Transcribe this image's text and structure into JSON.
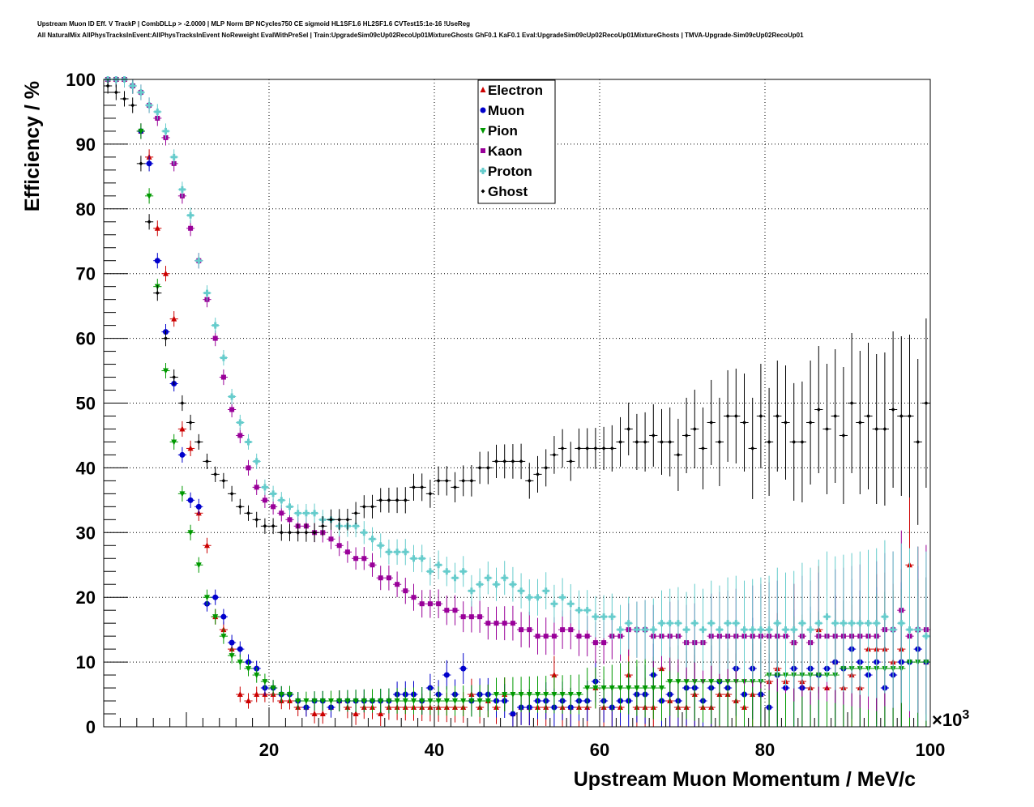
{
  "header": {
    "line1": "Upstream Muon ID Eff. V TrackP | CombDLLp > -2.0000 | MLP Norm BP NCycles750 CE sigmoid HL1SF1.6 HL2SF1.6 CVTest15:1e-16 !UseReg",
    "line2": "All NaturalMix AllPhysTracksInEvent:AllPhysTracksInEvent NoReweight EvalWithPreSel | Train:UpgradeSim09cUp02RecoUp01MixtureGhosts GhF0.1 KaF0.1 Eval:UpgradeSim09cUp02RecoUp01MixtureGhosts | TMVA-Upgrade-Sim09cUp02RecoUp01"
  },
  "chart_data": {
    "type": "scatter",
    "xlabel": "Upstream Muon Momentum / MeV/c",
    "ylabel": "Efficiency / %",
    "x_multiplier_label": "×10",
    "x_multiplier_exp": "3",
    "xlim": [
      0,
      100
    ],
    "ylim": [
      0,
      100
    ],
    "x_ticks": [
      20,
      40,
      60,
      80,
      100
    ],
    "y_ticks": [
      0,
      10,
      20,
      30,
      40,
      50,
      60,
      70,
      80,
      90,
      100
    ],
    "grid": true,
    "legend_position": "top-center",
    "x": [
      0.5,
      1.5,
      2.5,
      3.5,
      4.5,
      5.5,
      6.5,
      7.5,
      8.5,
      9.5,
      10.5,
      11.5,
      12.5,
      13.5,
      14.5,
      15.5,
      16.5,
      17.5,
      18.5,
      19.5,
      20.5,
      21.5,
      22.5,
      23.5,
      24.5,
      25.5,
      26.5,
      27.5,
      28.5,
      29.5,
      30.5,
      31.5,
      32.5,
      33.5,
      34.5,
      35.5,
      36.5,
      37.5,
      38.5,
      39.5,
      40.5,
      41.5,
      42.5,
      43.5,
      44.5,
      45.5,
      46.5,
      47.5,
      48.5,
      49.5,
      50.5,
      51.5,
      52.5,
      53.5,
      54.5,
      55.5,
      56.5,
      57.5,
      58.5,
      59.5,
      60.5,
      61.5,
      62.5,
      63.5,
      64.5,
      65.5,
      66.5,
      67.5,
      68.5,
      69.5,
      70.5,
      71.5,
      72.5,
      73.5,
      74.5,
      75.5,
      76.5,
      77.5,
      78.5,
      79.5,
      80.5,
      81.5,
      82.5,
      83.5,
      84.5,
      85.5,
      86.5,
      87.5,
      88.5,
      89.5,
      90.5,
      91.5,
      92.5,
      93.5,
      94.5,
      95.5,
      96.5,
      97.5,
      98.5,
      99.5
    ],
    "series": [
      {
        "name": "Electron",
        "color": "#cc0000",
        "marker": "triangle-up",
        "values": [
          100,
          100,
          100,
          99,
          92,
          88,
          77,
          70,
          63,
          46,
          43,
          33,
          28,
          17,
          15,
          12,
          5,
          4,
          5,
          5,
          5,
          4,
          4,
          3,
          3,
          2,
          2,
          3,
          4,
          3,
          2,
          3,
          3,
          2,
          3,
          3,
          3,
          3,
          3,
          3,
          3,
          3,
          3,
          3,
          5,
          3,
          4,
          3,
          5,
          2,
          3,
          3,
          3,
          3,
          8,
          3,
          3,
          3,
          3,
          6,
          3,
          3,
          3,
          8,
          3,
          3,
          3,
          9,
          4,
          3,
          3,
          5,
          3,
          3,
          5,
          5,
          4,
          3,
          5,
          5,
          7,
          9,
          7,
          13,
          7,
          6,
          15,
          6,
          10,
          6,
          8,
          6,
          12,
          12,
          12,
          10,
          12,
          25,
          15,
          10
        ]
      },
      {
        "name": "Muon",
        "color": "#0000cc",
        "marker": "circle",
        "values": [
          100,
          100,
          100,
          99,
          92,
          87,
          72,
          61,
          53,
          42,
          35,
          34,
          19,
          20,
          17,
          13,
          12,
          10,
          9,
          6,
          6,
          5,
          5,
          4,
          3,
          4,
          4,
          3,
          4,
          4,
          4,
          4,
          4,
          4,
          4,
          5,
          5,
          5,
          4,
          6,
          5,
          8,
          5,
          9,
          4,
          5,
          5,
          4,
          4,
          2,
          3,
          3,
          4,
          4,
          3,
          4,
          3,
          4,
          4,
          7,
          4,
          3,
          4,
          4,
          5,
          5,
          8,
          4,
          5,
          4,
          6,
          6,
          4,
          6,
          7,
          6,
          9,
          5,
          9,
          5,
          3,
          8,
          6,
          9,
          6,
          9,
          8,
          9,
          10,
          9,
          12,
          10,
          8,
          10,
          6,
          8,
          10,
          10,
          12,
          10
        ]
      },
      {
        "name": "Pion",
        "color": "#009900",
        "marker": "triangle-down",
        "values": [
          100,
          100,
          100,
          99,
          92,
          82,
          68,
          55,
          44,
          36,
          30,
          25,
          20,
          17,
          14,
          11,
          10,
          9,
          8,
          7,
          6,
          5,
          5,
          4,
          4,
          4,
          4,
          4,
          4,
          4,
          4,
          4,
          4,
          4,
          4,
          4,
          4,
          4,
          4,
          4,
          4,
          4,
          4,
          4,
          4,
          4,
          4,
          5,
          5,
          5,
          5,
          5,
          5,
          5,
          5,
          5,
          5,
          5,
          6,
          6,
          6,
          6,
          6,
          6,
          6,
          6,
          6,
          6,
          7,
          7,
          7,
          7,
          7,
          7,
          7,
          7,
          7,
          7,
          7,
          7,
          8,
          8,
          8,
          8,
          8,
          8,
          8,
          8,
          8,
          9,
          9,
          9,
          9,
          9,
          9,
          9,
          9,
          10,
          10,
          10
        ]
      },
      {
        "name": "Kaon",
        "color": "#990099",
        "marker": "square",
        "values": [
          100,
          100,
          100,
          99,
          98,
          96,
          94,
          91,
          87,
          82,
          77,
          72,
          66,
          60,
          54,
          49,
          45,
          40,
          37,
          35,
          34,
          33,
          32,
          31,
          31,
          30,
          30,
          29,
          28,
          27,
          26,
          26,
          25,
          23,
          23,
          22,
          21,
          20,
          19,
          19,
          19,
          18,
          18,
          17,
          17,
          17,
          16,
          16,
          16,
          16,
          15,
          15,
          14,
          14,
          14,
          15,
          15,
          14,
          14,
          13,
          13,
          14,
          14,
          15,
          15,
          15,
          14,
          14,
          14,
          14,
          13,
          13,
          13,
          14,
          14,
          14,
          14,
          14,
          14,
          14,
          14,
          14,
          14,
          13,
          14,
          13,
          14,
          14,
          14,
          14,
          14,
          14,
          14,
          14,
          15,
          15,
          18,
          14,
          15,
          15
        ]
      },
      {
        "name": "Proton",
        "color": "#66cccc",
        "marker": "cross",
        "values": [
          100,
          100,
          100,
          99,
          98,
          96,
          95,
          92,
          88,
          83,
          79,
          72,
          67,
          62,
          57,
          51,
          47,
          44,
          41,
          37,
          36,
          35,
          34,
          33,
          33,
          33,
          32,
          32,
          31,
          31,
          31,
          30,
          29,
          28,
          27,
          27,
          27,
          26,
          26,
          24,
          25,
          24,
          23,
          24,
          21,
          22,
          23,
          22,
          23,
          22,
          21,
          20,
          20,
          21,
          19,
          20,
          19,
          18,
          18,
          17,
          17,
          17,
          15,
          16,
          15,
          15,
          15,
          16,
          16,
          16,
          15,
          16,
          15,
          16,
          15,
          16,
          16,
          15,
          15,
          15,
          15,
          16,
          15,
          15,
          16,
          15,
          16,
          17,
          16,
          16,
          16,
          16,
          16,
          16,
          17,
          15,
          16,
          15,
          15,
          14
        ]
      },
      {
        "name": "Ghost",
        "color": "#000000",
        "marker": "diamond",
        "values": [
          99,
          98,
          97,
          96,
          87,
          78,
          67,
          60,
          54,
          50,
          47,
          44,
          41,
          39,
          38,
          36,
          34,
          33,
          32,
          31,
          31,
          30,
          30,
          30,
          30,
          30,
          31,
          32,
          32,
          32,
          33,
          34,
          34,
          35,
          35,
          35,
          35,
          37,
          37,
          36,
          38,
          38,
          37,
          38,
          38,
          40,
          40,
          41,
          41,
          41,
          41,
          38,
          39,
          40,
          42,
          43,
          41,
          43,
          43,
          43,
          43,
          43,
          44,
          46,
          44,
          44,
          45,
          44,
          44,
          42,
          45,
          46,
          43,
          47,
          44,
          48,
          48,
          47,
          43,
          48,
          44,
          48,
          47,
          44,
          44,
          47,
          49,
          46,
          48,
          45,
          50,
          47,
          48,
          46,
          46,
          49,
          48,
          48,
          44,
          50
        ]
      }
    ]
  }
}
